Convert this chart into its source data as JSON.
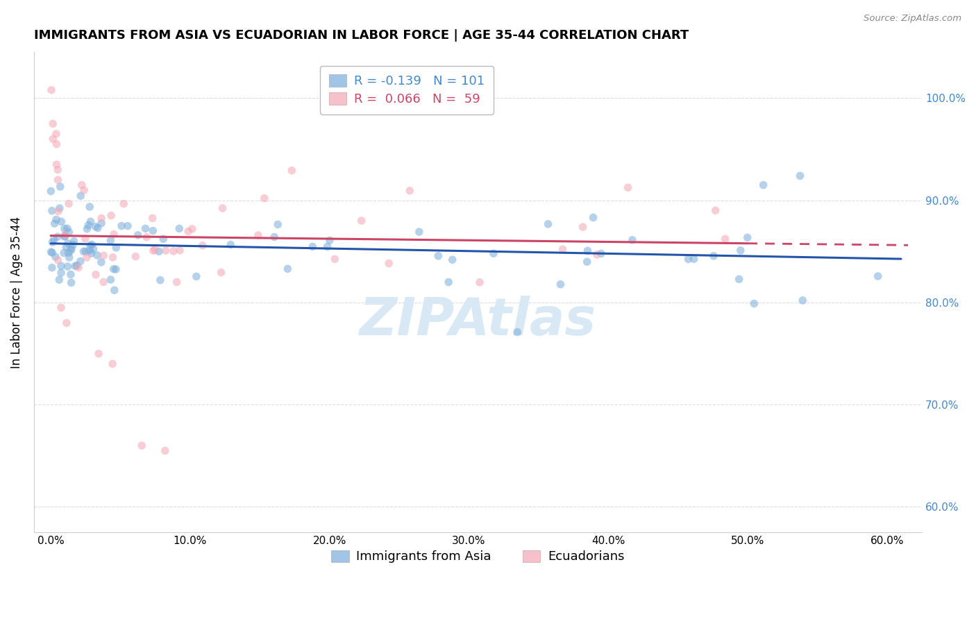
{
  "title": "IMMIGRANTS FROM ASIA VS ECUADORIAN IN LABOR FORCE | AGE 35-44 CORRELATION CHART",
  "source": "Source: ZipAtlas.com",
  "ylabel": "In Labor Force | Age 35-44",
  "xlabel_ticks": [
    "0.0%",
    "10.0%",
    "20.0%",
    "30.0%",
    "40.0%",
    "50.0%",
    "60.0%"
  ],
  "ylabel_ticks": [
    "60.0%",
    "70.0%",
    "80.0%",
    "90.0%",
    "100.0%"
  ],
  "xlim": [
    -0.012,
    0.625
  ],
  "ylim": [
    0.575,
    1.045
  ],
  "blue_color": "#7aaddb",
  "pink_color": "#f4a7b5",
  "trend_blue_color": "#2255aa",
  "trend_pink_color": "#cc4466",
  "watermark_color": "#d8e8f4",
  "grid_color": "#dddddd",
  "right_tick_color": "#4488cc",
  "legend_box_color": "#4488cc",
  "legend_pink_color": "#cc4466",
  "title_fontsize": 13,
  "tick_fontsize": 11,
  "marker_size": 70,
  "legend_fontsize": 13
}
